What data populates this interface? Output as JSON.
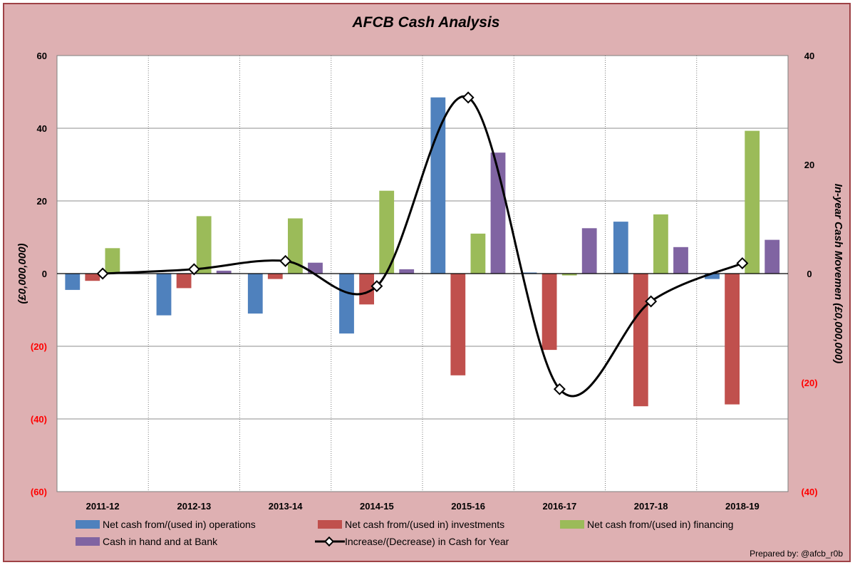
{
  "chart_data": {
    "type": "bar",
    "title": "AFCB Cash Analysis",
    "credit": "Prepared by: @afcb_r0b",
    "categories": [
      "2011-12",
      "2012-13",
      "2013-14",
      "2014-15",
      "2015-16",
      "2016-17",
      "2017-18",
      "2018-19"
    ],
    "ylabel": "(£0,000,000)",
    "y2label": "In-year Cash Movemen (£0,000,000)",
    "ylim": [
      -60,
      60
    ],
    "y2lim": [
      -40,
      40
    ],
    "yticks": [
      {
        "value": 60,
        "label": "60"
      },
      {
        "value": 40,
        "label": "40"
      },
      {
        "value": 20,
        "label": "20"
      },
      {
        "value": 0,
        "label": "0"
      },
      {
        "value": -20,
        "label": "(20)"
      },
      {
        "value": -40,
        "label": "(40)"
      },
      {
        "value": -60,
        "label": "(60)"
      }
    ],
    "y2ticks": [
      {
        "value": 40,
        "label": "40"
      },
      {
        "value": 20,
        "label": "20"
      },
      {
        "value": 0,
        "label": "0"
      },
      {
        "value": -20,
        "label": "(20)"
      },
      {
        "value": -40,
        "label": "(40)"
      }
    ],
    "grid": true,
    "legend_position": "bottom",
    "series": [
      {
        "name": "Net cash from/(used in) operations",
        "type": "bar",
        "axis": "left",
        "color": "#4f81bd",
        "values": [
          -4.5,
          -11.5,
          -11,
          -16.5,
          48.5,
          0.3,
          14.3,
          -1.5
        ]
      },
      {
        "name": "Net cash from/(used in) investments",
        "type": "bar",
        "axis": "left",
        "color": "#c0504d",
        "values": [
          -2,
          -4,
          -1.5,
          -8.5,
          -28,
          -21,
          -36.5,
          -36
        ]
      },
      {
        "name": "Net cash from/(used in) financing",
        "type": "bar",
        "axis": "left",
        "color": "#9bbb59",
        "values": [
          7,
          15.8,
          15.2,
          22.8,
          11,
          -0.5,
          16.3,
          39.3
        ]
      },
      {
        "name": "Cash in hand and at Bank",
        "type": "bar",
        "axis": "left",
        "color": "#8064a2",
        "values": [
          0,
          0.8,
          3,
          1.2,
          33.3,
          12.5,
          7.3,
          9.3
        ]
      },
      {
        "name": "Increase/(Decrease) in Cash for Year",
        "type": "line",
        "axis": "right",
        "color": "#000000",
        "values": [
          0,
          0.8,
          2.3,
          -2.3,
          32.3,
          -21.2,
          -5.1,
          1.9
        ]
      }
    ],
    "colors": {
      "frame_bg": "#deb0b2",
      "frame_border": "#9e4246",
      "plot_bg": "#ffffff",
      "negative_tick": "#ff0000",
      "positive_tick": "#000000"
    }
  }
}
